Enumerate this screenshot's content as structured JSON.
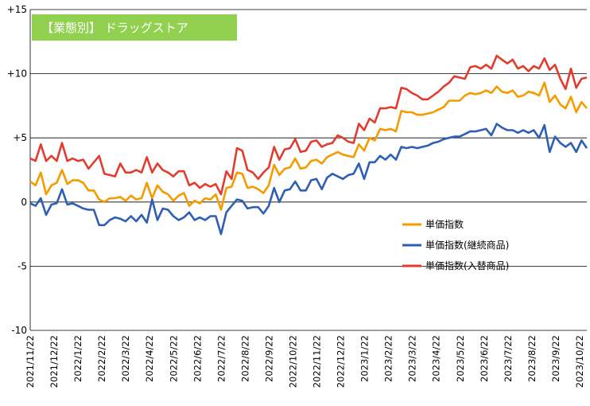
{
  "chart_data": {
    "type": "line",
    "title": "【業態別】 ドラッグストア",
    "colors": {
      "title_bg": "#92d050",
      "grid": "#000000"
    },
    "ylim": [
      -10,
      15
    ],
    "yticks": [
      {
        "value": 15,
        "label": "+15"
      },
      {
        "value": 10,
        "label": "+10"
      },
      {
        "value": 5,
        "label": "+5"
      },
      {
        "value": 0,
        "label": "0"
      },
      {
        "value": -5,
        "label": "-5"
      },
      {
        "value": -10,
        "label": "-10"
      }
    ],
    "x_tick_labels": [
      "2021/11/22",
      "2021/12/22",
      "2022/1/22",
      "2022/2/22",
      "2022/3/22",
      "2022/4/22",
      "2022/5/22",
      "2022/6/22",
      "2022/7/22",
      "2022/8/22",
      "2022/9/22",
      "2022/10/22",
      "2022/11/22",
      "2022/12/22",
      "2023/1/22",
      "2023/2/22",
      "2023/3/22",
      "2023/4/22",
      "2023/5/22",
      "2023/6/22",
      "2023/7/22",
      "2023/8/22",
      "2023/9/22",
      "2023/10/22"
    ],
    "x_frequency": "weekly",
    "legend_position": "right",
    "series": [
      {
        "name": "単価指数",
        "color": "#f59b00",
        "values": [
          1.6,
          1.3,
          2.3,
          0.6,
          1.3,
          1.5,
          2.5,
          1.4,
          1.7,
          1.7,
          1.5,
          0.9,
          0.9,
          0.2,
          0.0,
          0.3,
          0.3,
          0.4,
          0.1,
          0.5,
          0.2,
          0.3,
          1.5,
          0.3,
          1.3,
          0.8,
          0.6,
          0.1,
          0.5,
          0.7,
          -0.3,
          0.1,
          -0.1,
          0.3,
          0.2,
          0.6,
          -0.6,
          1.1,
          1.2,
          2.3,
          2.2,
          1.1,
          1.2,
          1.0,
          0.7,
          1.3,
          2.9,
          2.1,
          2.6,
          2.7,
          3.4,
          2.6,
          2.7,
          3.2,
          3.3,
          3.0,
          3.5,
          3.7,
          3.9,
          3.7,
          3.6,
          3.5,
          4.5,
          4.0,
          5.0,
          4.8,
          5.7,
          5.6,
          5.7,
          5.5,
          7.1,
          7.0,
          7.0,
          6.8,
          6.8,
          6.9,
          7.0,
          7.2,
          7.4,
          7.9,
          7.9,
          7.9,
          8.3,
          8.5,
          8.4,
          8.5,
          8.7,
          8.5,
          9.0,
          8.6,
          8.5,
          8.7,
          8.2,
          8.3,
          8.6,
          8.5,
          8.3,
          9.3,
          7.8,
          8.3,
          7.6,
          7.3,
          8.2,
          7.0,
          7.8,
          7.3
        ]
      },
      {
        "name": "単価指数(継続商品)",
        "color": "#2e5fb5",
        "values": [
          -0.1,
          -0.3,
          0.3,
          -1.0,
          -0.2,
          -0.1,
          1.0,
          -0.2,
          -0.1,
          -0.3,
          -0.5,
          -0.6,
          -0.6,
          -1.8,
          -1.8,
          -1.4,
          -1.2,
          -1.3,
          -1.5,
          -1.1,
          -1.5,
          -1.0,
          -1.6,
          0.2,
          -1.4,
          -0.5,
          -0.6,
          -1.1,
          -1.4,
          -1.2,
          -0.8,
          -1.4,
          -1.2,
          -1.4,
          -1.1,
          -1.1,
          -2.5,
          -0.8,
          -0.3,
          0.2,
          0.1,
          -0.5,
          -0.4,
          -0.4,
          -0.9,
          -0.3,
          1.1,
          0.0,
          0.9,
          1.0,
          1.6,
          0.9,
          0.9,
          1.7,
          1.8,
          1.0,
          1.9,
          2.2,
          2.0,
          1.8,
          2.1,
          2.2,
          3.0,
          1.8,
          3.1,
          3.1,
          3.6,
          3.3,
          3.7,
          3.3,
          4.3,
          4.2,
          4.3,
          4.2,
          4.3,
          4.4,
          4.6,
          4.7,
          4.9,
          5.0,
          5.1,
          5.1,
          5.3,
          5.5,
          5.5,
          5.6,
          5.7,
          5.2,
          6.1,
          5.8,
          5.6,
          5.6,
          5.4,
          5.6,
          5.4,
          5.6,
          5.0,
          6.0,
          3.9,
          5.1,
          4.6,
          4.3,
          4.6,
          3.9,
          4.8,
          4.2
        ]
      },
      {
        "name": "単価指数(入替商品)",
        "color": "#e33b2e",
        "values": [
          3.4,
          3.2,
          4.5,
          3.2,
          3.6,
          3.2,
          4.6,
          3.2,
          3.4,
          3.2,
          3.3,
          2.6,
          3.1,
          3.6,
          2.2,
          2.1,
          2.0,
          3.0,
          2.3,
          2.3,
          2.5,
          2.3,
          3.5,
          2.3,
          3.0,
          2.5,
          2.3,
          2.0,
          2.4,
          2.4,
          1.3,
          1.5,
          1.1,
          1.4,
          1.2,
          1.4,
          0.6,
          2.4,
          1.8,
          4.2,
          4.0,
          2.5,
          2.3,
          1.8,
          2.3,
          2.7,
          4.3,
          3.3,
          4.1,
          4.2,
          4.9,
          3.9,
          4.0,
          4.7,
          4.8,
          4.3,
          4.5,
          4.6,
          5.2,
          5.0,
          4.7,
          4.6,
          6.1,
          5.6,
          6.5,
          6.2,
          7.3,
          7.3,
          7.4,
          7.3,
          8.9,
          8.8,
          8.5,
          8.3,
          8.0,
          8.0,
          8.3,
          8.6,
          9.0,
          9.3,
          9.8,
          9.7,
          9.6,
          10.5,
          10.6,
          10.4,
          10.7,
          10.4,
          11.4,
          11.1,
          10.8,
          11.1,
          10.4,
          10.6,
          10.2,
          10.6,
          10.4,
          11.2,
          10.3,
          10.7,
          9.6,
          8.8,
          10.4,
          8.9,
          9.6,
          9.7
        ]
      }
    ]
  }
}
